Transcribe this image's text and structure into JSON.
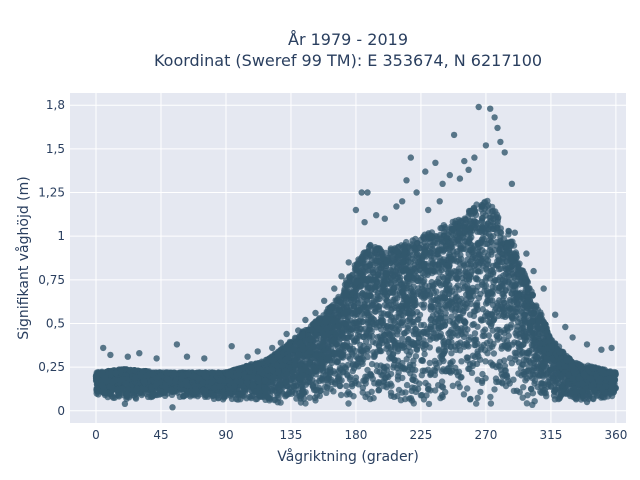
{
  "chart_data": {
    "type": "scatter",
    "title": "År 1979 - 2019",
    "subtitle": "Koordinat (Sweref 99 TM): E 353674, N 6217100",
    "xlabel": "Vågriktning (grader)",
    "ylabel": "Signifikant våghöjd (m)",
    "xlim": [
      -18,
      367
    ],
    "ylim": [
      -0.07,
      1.82
    ],
    "x_ticks": [
      0,
      45,
      90,
      135,
      180,
      225,
      270,
      315,
      360
    ],
    "x_tick_labels": [
      "0",
      "45",
      "90",
      "135",
      "180",
      "225",
      "270",
      "315",
      "360"
    ],
    "y_ticks": [
      0,
      0.25,
      0.5,
      0.75,
      1,
      1.25,
      1.5,
      1.75
    ],
    "y_tick_labels": [
      "0",
      "0,25",
      "0,5",
      "0,75",
      "1",
      "1,25",
      "1,5",
      "1,8"
    ],
    "grid": true,
    "marker_color": "#33586e",
    "plot_background": "#e5e8f1",
    "envelope": {
      "x": [
        0,
        20,
        45,
        90,
        120,
        135,
        150,
        165,
        180,
        190,
        200,
        225,
        250,
        270,
        285,
        295,
        305,
        315,
        330,
        345,
        360
      ],
      "y_max": [
        0.22,
        0.24,
        0.22,
        0.22,
        0.3,
        0.4,
        0.5,
        0.62,
        0.85,
        0.95,
        0.92,
        1.0,
        1.1,
        1.22,
        1.05,
        0.82,
        0.62,
        0.42,
        0.28,
        0.25,
        0.22
      ],
      "y_min": [
        0.08,
        0.06,
        0.08,
        0.06,
        0.05,
        0.03,
        0.02,
        0.02,
        0.02,
        0.02,
        0.02,
        0.02,
        0.02,
        0.02,
        0.02,
        0.03,
        0.03,
        0.04,
        0.05,
        0.06,
        0.08
      ]
    },
    "outliers": [
      {
        "x": 265,
        "y": 1.74
      },
      {
        "x": 273,
        "y": 1.73
      },
      {
        "x": 276,
        "y": 1.68
      },
      {
        "x": 278,
        "y": 1.62
      },
      {
        "x": 280,
        "y": 1.54
      },
      {
        "x": 283,
        "y": 1.48
      },
      {
        "x": 270,
        "y": 1.52
      },
      {
        "x": 262,
        "y": 1.45
      },
      {
        "x": 255,
        "y": 1.43
      },
      {
        "x": 248,
        "y": 1.58
      },
      {
        "x": 235,
        "y": 1.42
      },
      {
        "x": 228,
        "y": 1.37
      },
      {
        "x": 218,
        "y": 1.45
      },
      {
        "x": 215,
        "y": 1.32
      },
      {
        "x": 222,
        "y": 1.25
      },
      {
        "x": 240,
        "y": 1.3
      },
      {
        "x": 245,
        "y": 1.35
      },
      {
        "x": 252,
        "y": 1.33
      },
      {
        "x": 258,
        "y": 1.38
      },
      {
        "x": 288,
        "y": 1.3
      },
      {
        "x": 184,
        "y": 1.25
      },
      {
        "x": 188,
        "y": 1.25
      },
      {
        "x": 180,
        "y": 1.15
      },
      {
        "x": 186,
        "y": 1.08
      },
      {
        "x": 194,
        "y": 1.12
      },
      {
        "x": 200,
        "y": 1.1
      },
      {
        "x": 208,
        "y": 1.17
      },
      {
        "x": 212,
        "y": 1.2
      },
      {
        "x": 230,
        "y": 1.15
      },
      {
        "x": 238,
        "y": 1.2
      },
      {
        "x": 290,
        "y": 1.02
      },
      {
        "x": 298,
        "y": 0.9
      },
      {
        "x": 303,
        "y": 0.8
      },
      {
        "x": 310,
        "y": 0.7
      },
      {
        "x": 318,
        "y": 0.55
      },
      {
        "x": 325,
        "y": 0.48
      },
      {
        "x": 330,
        "y": 0.42
      },
      {
        "x": 340,
        "y": 0.38
      },
      {
        "x": 350,
        "y": 0.35
      },
      {
        "x": 357,
        "y": 0.36
      },
      {
        "x": 5,
        "y": 0.36
      },
      {
        "x": 10,
        "y": 0.32
      },
      {
        "x": 22,
        "y": 0.31
      },
      {
        "x": 30,
        "y": 0.33
      },
      {
        "x": 42,
        "y": 0.3
      },
      {
        "x": 56,
        "y": 0.38
      },
      {
        "x": 63,
        "y": 0.31
      },
      {
        "x": 75,
        "y": 0.3
      },
      {
        "x": 94,
        "y": 0.37
      },
      {
        "x": 105,
        "y": 0.31
      },
      {
        "x": 112,
        "y": 0.34
      },
      {
        "x": 122,
        "y": 0.36
      },
      {
        "x": 128,
        "y": 0.39
      },
      {
        "x": 132,
        "y": 0.44
      },
      {
        "x": 140,
        "y": 0.46
      },
      {
        "x": 145,
        "y": 0.52
      },
      {
        "x": 152,
        "y": 0.56
      },
      {
        "x": 158,
        "y": 0.63
      },
      {
        "x": 165,
        "y": 0.7
      },
      {
        "x": 170,
        "y": 0.77
      },
      {
        "x": 175,
        "y": 0.85
      },
      {
        "x": 53,
        "y": 0.02
      },
      {
        "x": 20,
        "y": 0.04
      },
      {
        "x": 340,
        "y": 0.05
      }
    ]
  }
}
